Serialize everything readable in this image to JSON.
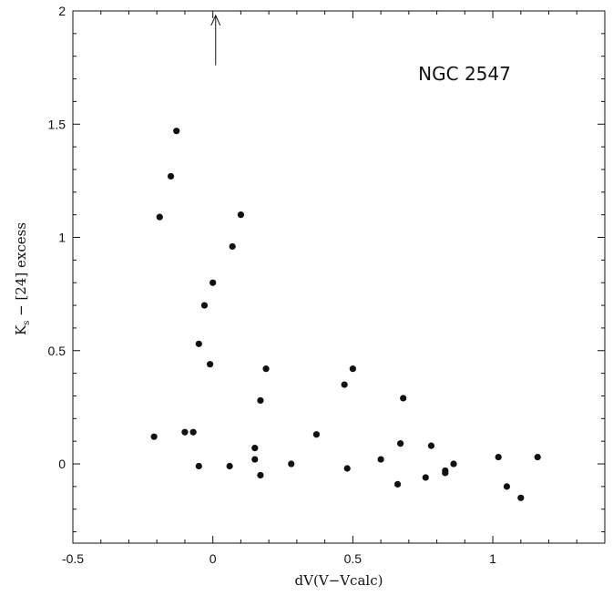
{
  "chart_data": {
    "type": "scatter",
    "title": "NGC 2547",
    "xlabel": "dV(V−Vcalc)",
    "ylabel_main": "K",
    "ylabel_sub": "s",
    "ylabel_rest": " − [24] excess",
    "xlim": [
      -0.5,
      1.4
    ],
    "ylim": [
      -0.35,
      2.0
    ],
    "x_ticks": [
      -0.5,
      0,
      0.5,
      1
    ],
    "x_tick_labels": [
      "-0.5",
      "0",
      "0.5",
      "1"
    ],
    "y_ticks": [
      0,
      0.5,
      1,
      1.5,
      2
    ],
    "y_tick_labels": [
      "0",
      "0.5",
      "1",
      "1.5",
      "2"
    ],
    "grid": false,
    "marker_color": "#111111",
    "upper_limit_arrows": [
      {
        "x": 0.01,
        "y_from": 1.76,
        "y_to": 1.98
      }
    ],
    "points": [
      {
        "x": -0.13,
        "y": 1.47
      },
      {
        "x": -0.15,
        "y": 1.27
      },
      {
        "x": -0.19,
        "y": 1.09
      },
      {
        "x": 0.1,
        "y": 1.1
      },
      {
        "x": 0.07,
        "y": 0.96
      },
      {
        "x": 0.0,
        "y": 0.8
      },
      {
        "x": -0.03,
        "y": 0.7
      },
      {
        "x": -0.05,
        "y": 0.53
      },
      {
        "x": -0.01,
        "y": 0.44
      },
      {
        "x": 0.19,
        "y": 0.42
      },
      {
        "x": 0.17,
        "y": 0.28
      },
      {
        "x": 0.15,
        "y": 0.07
      },
      {
        "x": 0.15,
        "y": 0.02
      },
      {
        "x": 0.17,
        "y": -0.05
      },
      {
        "x": 0.06,
        "y": -0.01
      },
      {
        "x": -0.05,
        "y": -0.01
      },
      {
        "x": -0.07,
        "y": 0.14
      },
      {
        "x": -0.1,
        "y": 0.14
      },
      {
        "x": -0.21,
        "y": 0.12
      },
      {
        "x": 0.28,
        "y": 0.0
      },
      {
        "x": 0.37,
        "y": 0.13
      },
      {
        "x": 0.47,
        "y": 0.35
      },
      {
        "x": 0.5,
        "y": 0.42
      },
      {
        "x": 0.48,
        "y": -0.02
      },
      {
        "x": 0.6,
        "y": 0.02
      },
      {
        "x": 0.68,
        "y": 0.29
      },
      {
        "x": 0.67,
        "y": 0.09
      },
      {
        "x": 0.66,
        "y": -0.09
      },
      {
        "x": 0.76,
        "y": -0.06
      },
      {
        "x": 0.78,
        "y": 0.08
      },
      {
        "x": 0.83,
        "y": -0.03
      },
      {
        "x": 0.83,
        "y": -0.04
      },
      {
        "x": 0.86,
        "y": 0.0
      },
      {
        "x": 1.02,
        "y": 0.03
      },
      {
        "x": 1.05,
        "y": -0.1
      },
      {
        "x": 1.1,
        "y": -0.15
      },
      {
        "x": 1.16,
        "y": 0.03
      }
    ]
  }
}
